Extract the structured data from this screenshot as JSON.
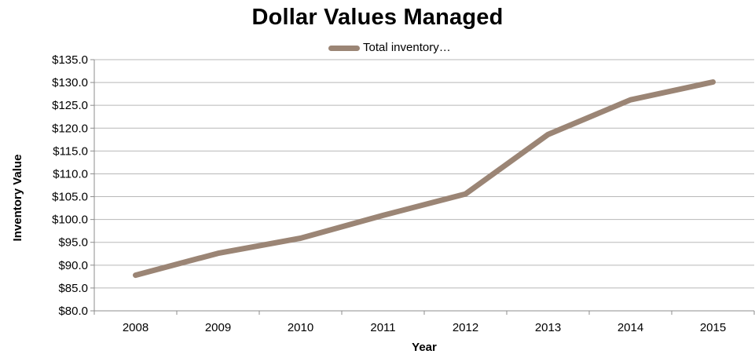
{
  "chart_data": {
    "type": "line",
    "title": "Dollar Values Managed",
    "xlabel": "Year",
    "ylabel": "Inventory Value",
    "categories": [
      "2008",
      "2009",
      "2010",
      "2011",
      "2012",
      "2013",
      "2014",
      "2015"
    ],
    "series": [
      {
        "name": "Total inventory…",
        "values": [
          87.8,
          92.6,
          95.9,
          100.9,
          105.6,
          118.6,
          126.2,
          130.1
        ],
        "color": "#9b8575"
      }
    ],
    "ylim": [
      80,
      135
    ],
    "y_ticks": [
      80,
      85,
      90,
      95,
      100,
      105,
      110,
      115,
      120,
      125,
      130,
      135
    ],
    "y_tick_labels": [
      "$80.0",
      "$85.0",
      "$90.0",
      "$95.0",
      "$100.0",
      "$105.0",
      "$110.0",
      "$115.0",
      "$120.0",
      "$125.0",
      "$130.0",
      "$135.0"
    ],
    "grid": true,
    "legend_position": "top-center",
    "gridline_color": "#b8b8b8"
  }
}
